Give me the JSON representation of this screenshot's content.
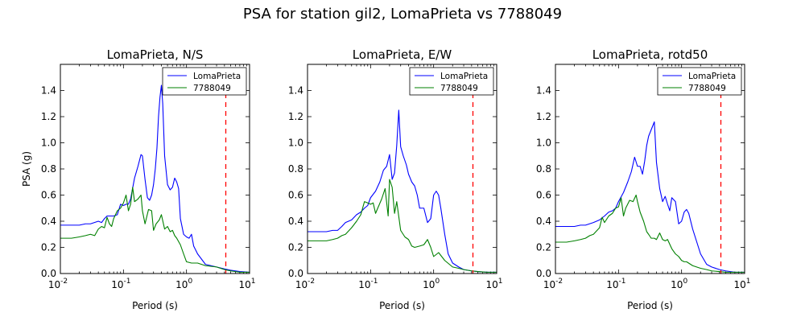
{
  "figure": {
    "title": "PSA for station gil2, LomaPrieta vs 7788049"
  },
  "colors": {
    "series1": "#0000ff",
    "series2": "#008000",
    "cutoff": "#ff0000"
  },
  "chart_data": [
    {
      "type": "line",
      "title": "LomaPrieta, N/S",
      "xlabel": "Period (s)",
      "ylabel": "PSA (g)",
      "xscale": "log",
      "xlim": [
        0.01,
        10
      ],
      "ylim": [
        0,
        1.6
      ],
      "xticks": [
        "10^-2",
        "10^-1",
        "10^0",
        "10^1"
      ],
      "yticks": [
        "0.0",
        "0.2",
        "0.4",
        "0.6",
        "0.8",
        "1.0",
        "1.2",
        "1.4"
      ],
      "legend": "top-right",
      "cutoff_period": 4.2,
      "series": [
        {
          "name": "LomaPrieta",
          "color": "#0000ff",
          "x": [
            0.01,
            0.015,
            0.02,
            0.025,
            0.03,
            0.04,
            0.045,
            0.05,
            0.055,
            0.06,
            0.07,
            0.08,
            0.09,
            0.1,
            0.11,
            0.12,
            0.13,
            0.15,
            0.17,
            0.19,
            0.2,
            0.22,
            0.24,
            0.26,
            0.28,
            0.3,
            0.32,
            0.34,
            0.36,
            0.38,
            0.4,
            0.42,
            0.45,
            0.5,
            0.55,
            0.6,
            0.65,
            0.7,
            0.75,
            0.8,
            0.9,
            1.0,
            1.1,
            1.2,
            1.3,
            1.5,
            2.0,
            3.0,
            4.0,
            5.0,
            7.0,
            10.0
          ],
          "y": [
            0.37,
            0.37,
            0.37,
            0.38,
            0.38,
            0.4,
            0.39,
            0.42,
            0.44,
            0.44,
            0.44,
            0.45,
            0.53,
            0.52,
            0.53,
            0.53,
            0.57,
            0.73,
            0.82,
            0.91,
            0.9,
            0.72,
            0.58,
            0.56,
            0.6,
            0.68,
            0.8,
            0.96,
            1.2,
            1.35,
            1.44,
            1.3,
            0.9,
            0.68,
            0.64,
            0.66,
            0.73,
            0.7,
            0.65,
            0.42,
            0.3,
            0.28,
            0.27,
            0.3,
            0.21,
            0.15,
            0.07,
            0.05,
            0.035,
            0.025,
            0.015,
            0.01
          ]
        },
        {
          "name": "7788049",
          "color": "#008000",
          "x": [
            0.01,
            0.015,
            0.02,
            0.025,
            0.03,
            0.035,
            0.04,
            0.045,
            0.05,
            0.055,
            0.06,
            0.065,
            0.07,
            0.08,
            0.09,
            0.1,
            0.11,
            0.12,
            0.13,
            0.14,
            0.15,
            0.17,
            0.19,
            0.2,
            0.22,
            0.25,
            0.28,
            0.3,
            0.33,
            0.37,
            0.4,
            0.45,
            0.5,
            0.55,
            0.6,
            0.65,
            0.7,
            0.8,
            0.9,
            1.0,
            1.2,
            1.5,
            2.0,
            3.0,
            4.0,
            5.0,
            7.0,
            10.0
          ],
          "y": [
            0.27,
            0.27,
            0.28,
            0.29,
            0.3,
            0.29,
            0.34,
            0.36,
            0.35,
            0.43,
            0.38,
            0.36,
            0.42,
            0.48,
            0.5,
            0.54,
            0.6,
            0.48,
            0.53,
            0.66,
            0.55,
            0.57,
            0.6,
            0.48,
            0.38,
            0.49,
            0.48,
            0.33,
            0.38,
            0.41,
            0.45,
            0.34,
            0.36,
            0.32,
            0.33,
            0.29,
            0.27,
            0.22,
            0.15,
            0.09,
            0.08,
            0.08,
            0.06,
            0.05,
            0.03,
            0.02,
            0.01,
            0.01
          ]
        }
      ]
    },
    {
      "type": "line",
      "title": "LomaPrieta, E/W",
      "xlabel": "Period (s)",
      "ylabel": "",
      "xscale": "log",
      "xlim": [
        0.01,
        10
      ],
      "ylim": [
        0,
        1.6
      ],
      "xticks": [
        "10^-2",
        "10^-1",
        "10^0",
        "10^1"
      ],
      "yticks": [
        "0.0",
        "0.2",
        "0.4",
        "0.6",
        "0.8",
        "1.0",
        "1.2",
        "1.4"
      ],
      "legend": "top-right",
      "cutoff_period": 4.2,
      "series": [
        {
          "name": "LomaPrieta",
          "color": "#0000ff",
          "x": [
            0.01,
            0.015,
            0.02,
            0.025,
            0.03,
            0.035,
            0.04,
            0.05,
            0.06,
            0.07,
            0.08,
            0.09,
            0.1,
            0.12,
            0.14,
            0.16,
            0.18,
            0.2,
            0.22,
            0.24,
            0.26,
            0.28,
            0.3,
            0.33,
            0.37,
            0.4,
            0.45,
            0.5,
            0.55,
            0.6,
            0.7,
            0.8,
            0.9,
            1.0,
            1.1,
            1.2,
            1.3,
            1.5,
            1.7,
            2.0,
            2.5,
            3.0,
            4.0,
            5.0,
            7.0,
            10.0
          ],
          "y": [
            0.32,
            0.32,
            0.32,
            0.33,
            0.33,
            0.36,
            0.39,
            0.41,
            0.45,
            0.47,
            0.5,
            0.52,
            0.58,
            0.63,
            0.7,
            0.79,
            0.82,
            0.91,
            0.72,
            0.77,
            0.98,
            1.25,
            0.97,
            0.9,
            0.83,
            0.76,
            0.7,
            0.67,
            0.6,
            0.5,
            0.5,
            0.39,
            0.42,
            0.6,
            0.63,
            0.6,
            0.5,
            0.3,
            0.15,
            0.08,
            0.05,
            0.03,
            0.02,
            0.015,
            0.01,
            0.01
          ]
        },
        {
          "name": "7788049",
          "color": "#008000",
          "x": [
            0.01,
            0.015,
            0.02,
            0.025,
            0.03,
            0.035,
            0.04,
            0.05,
            0.06,
            0.07,
            0.08,
            0.09,
            0.1,
            0.11,
            0.12,
            0.13,
            0.15,
            0.17,
            0.19,
            0.2,
            0.22,
            0.24,
            0.26,
            0.3,
            0.35,
            0.4,
            0.45,
            0.5,
            0.6,
            0.7,
            0.8,
            0.9,
            1.0,
            1.2,
            1.5,
            2.0,
            2.5,
            3.0,
            4.0,
            5.0,
            7.0,
            10.0
          ],
          "y": [
            0.25,
            0.25,
            0.25,
            0.26,
            0.27,
            0.29,
            0.3,
            0.35,
            0.4,
            0.45,
            0.55,
            0.54,
            0.53,
            0.54,
            0.46,
            0.5,
            0.57,
            0.65,
            0.44,
            0.72,
            0.66,
            0.46,
            0.55,
            0.33,
            0.28,
            0.26,
            0.21,
            0.2,
            0.21,
            0.22,
            0.26,
            0.2,
            0.13,
            0.16,
            0.1,
            0.05,
            0.04,
            0.03,
            0.02,
            0.015,
            0.01,
            0.01
          ]
        }
      ]
    },
    {
      "type": "line",
      "title": "LomaPrieta, rotd50",
      "xlabel": "Period (s)",
      "ylabel": "",
      "xscale": "log",
      "xlim": [
        0.01,
        10
      ],
      "ylim": [
        0,
        1.6
      ],
      "xticks": [
        "10^-2",
        "10^-1",
        "10^0",
        "10^1"
      ],
      "yticks": [
        "0.0",
        "0.2",
        "0.4",
        "0.6",
        "0.8",
        "1.0",
        "1.2",
        "1.4"
      ],
      "legend": "top-right",
      "cutoff_period": 4.2,
      "series": [
        {
          "name": "LomaPrieta",
          "color": "#0000ff",
          "x": [
            0.01,
            0.015,
            0.02,
            0.025,
            0.03,
            0.04,
            0.05,
            0.06,
            0.07,
            0.08,
            0.09,
            0.1,
            0.12,
            0.14,
            0.16,
            0.18,
            0.2,
            0.22,
            0.24,
            0.26,
            0.28,
            0.3,
            0.33,
            0.37,
            0.4,
            0.45,
            0.5,
            0.55,
            0.6,
            0.65,
            0.7,
            0.8,
            0.9,
            1.0,
            1.1,
            1.2,
            1.3,
            1.5,
            2.0,
            2.5,
            3.0,
            4.0,
            5.0,
            7.0,
            10.0
          ],
          "y": [
            0.36,
            0.36,
            0.36,
            0.37,
            0.37,
            0.39,
            0.41,
            0.44,
            0.47,
            0.48,
            0.5,
            0.55,
            0.62,
            0.7,
            0.78,
            0.89,
            0.82,
            0.82,
            0.76,
            0.86,
            0.98,
            1.05,
            1.1,
            1.16,
            0.85,
            0.65,
            0.55,
            0.59,
            0.53,
            0.48,
            0.58,
            0.55,
            0.38,
            0.4,
            0.47,
            0.49,
            0.46,
            0.34,
            0.15,
            0.07,
            0.05,
            0.03,
            0.02,
            0.01,
            0.01
          ]
        },
        {
          "name": "7788049",
          "color": "#008000",
          "x": [
            0.01,
            0.015,
            0.02,
            0.025,
            0.03,
            0.035,
            0.04,
            0.05,
            0.055,
            0.06,
            0.07,
            0.08,
            0.09,
            0.1,
            0.11,
            0.12,
            0.13,
            0.15,
            0.17,
            0.19,
            0.2,
            0.22,
            0.25,
            0.28,
            0.3,
            0.33,
            0.37,
            0.4,
            0.45,
            0.5,
            0.55,
            0.6,
            0.7,
            0.8,
            0.9,
            1.0,
            1.1,
            1.2,
            1.5,
            2.0,
            2.5,
            3.0,
            4.0,
            5.0,
            7.0,
            10.0
          ],
          "y": [
            0.24,
            0.24,
            0.25,
            0.26,
            0.27,
            0.29,
            0.3,
            0.35,
            0.43,
            0.39,
            0.44,
            0.46,
            0.5,
            0.51,
            0.58,
            0.44,
            0.5,
            0.56,
            0.55,
            0.6,
            0.55,
            0.47,
            0.4,
            0.32,
            0.3,
            0.27,
            0.27,
            0.26,
            0.31,
            0.26,
            0.25,
            0.26,
            0.19,
            0.15,
            0.13,
            0.1,
            0.09,
            0.09,
            0.06,
            0.04,
            0.03,
            0.02,
            0.015,
            0.01,
            0.01,
            0.01
          ]
        }
      ]
    }
  ]
}
